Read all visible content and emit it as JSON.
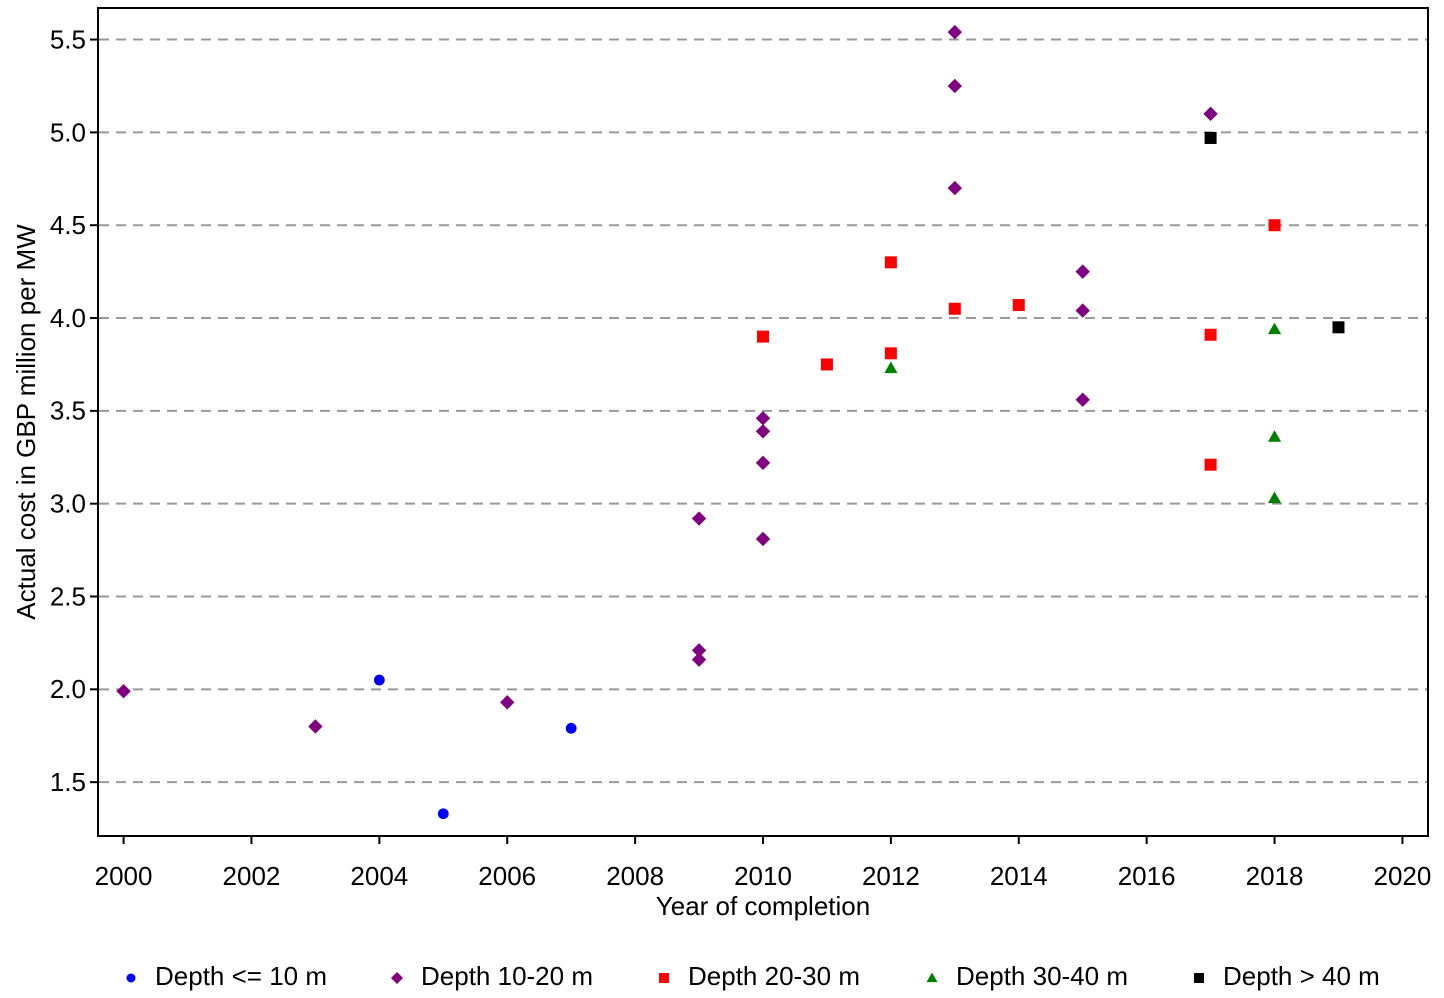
{
  "chart_data": {
    "type": "scatter",
    "x_label": "Year of completion",
    "y_label": "Actual cost in GBP million per MW",
    "xlim": [
      1999.6,
      2020.4
    ],
    "ylim": [
      1.21,
      5.67
    ],
    "xticks": [
      2000,
      2002,
      2004,
      2006,
      2008,
      2010,
      2012,
      2014,
      2016,
      2018,
      2020
    ],
    "yticks": [
      1.5,
      {
        "value": 2,
        "label": "2.0"
      },
      2.5,
      {
        "value": 3,
        "label": "3.0"
      },
      3.5,
      {
        "value": 4,
        "label": "4.0"
      },
      4.5,
      {
        "value": 5,
        "label": "5.0"
      },
      5.5
    ],
    "grid": true,
    "legend": "bottom",
    "series": [
      {
        "name": "Depth <= 10 m",
        "color": "#0000ff",
        "marker": "circle",
        "x": [
          2004,
          2005,
          2007
        ],
        "y": [
          2.05,
          1.33,
          1.79
        ]
      },
      {
        "name": "Depth 10-20 m",
        "color": "#800080",
        "marker": "diamond",
        "x": [
          2000,
          2003,
          2006,
          2009,
          2009,
          2009,
          2010,
          2010,
          2010,
          2010,
          2013,
          2013,
          2013,
          2015,
          2015,
          2015,
          2017
        ],
        "y": [
          1.99,
          1.8,
          1.93,
          2.92,
          2.21,
          2.16,
          3.46,
          3.39,
          3.22,
          2.81,
          5.54,
          5.25,
          4.7,
          4.25,
          4.04,
          3.56,
          5.1
        ]
      },
      {
        "name": "Depth 20-30 m",
        "color": "#ff0000",
        "marker": "square",
        "x": [
          2010,
          2011,
          2012,
          2012,
          2013,
          2014,
          2017,
          2017,
          2018
        ],
        "y": [
          3.9,
          3.75,
          4.3,
          3.81,
          4.05,
          4.07,
          3.91,
          3.21,
          4.5
        ]
      },
      {
        "name": "Depth 30-40 m",
        "color": "#008000",
        "marker": "triangle",
        "x": [
          2012,
          2018,
          2018,
          2018
        ],
        "y": [
          3.73,
          3.94,
          3.36,
          3.03
        ]
      },
      {
        "name": "Depth > 40 m",
        "color": "#000000",
        "marker": "square",
        "x": [
          2017,
          2019
        ],
        "y": [
          4.97,
          3.95
        ]
      }
    ]
  }
}
